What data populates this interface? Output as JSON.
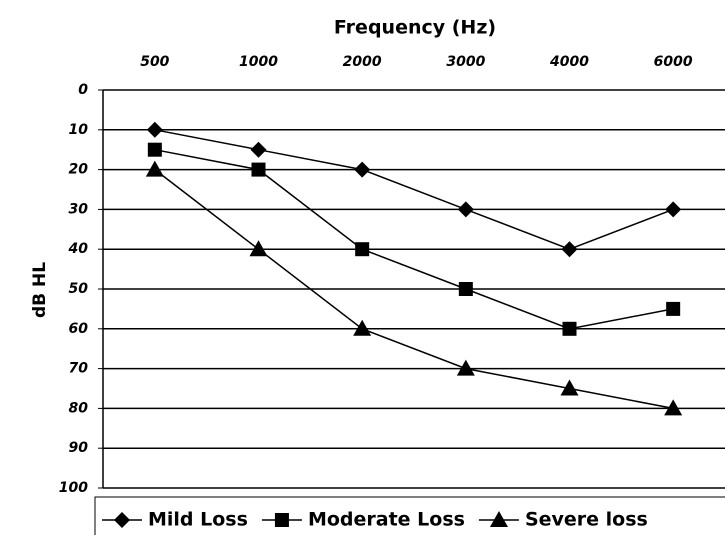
{
  "chart_data": {
    "type": "line",
    "x_label": "Frequency (Hz)",
    "y_label": "dB HL",
    "categories": [
      "500",
      "1000",
      "2000",
      "3000",
      "4000",
      "6000"
    ],
    "series": [
      {
        "name": "Mild Loss",
        "color": "#000000",
        "marker": "diamond",
        "values": [
          10,
          15,
          20,
          30,
          40,
          30
        ]
      },
      {
        "name": "Moderate Loss",
        "color": "#000000",
        "marker": "square",
        "values": [
          15,
          20,
          40,
          50,
          60,
          55
        ]
      },
      {
        "name": "Severe loss",
        "color": "#000000",
        "marker": "triangle",
        "values": [
          20,
          40,
          60,
          70,
          75,
          80
        ]
      }
    ],
    "ylim": [
      0,
      100
    ],
    "y_inverted": true,
    "yticks": [
      0,
      10,
      20,
      30,
      40,
      50,
      60,
      70,
      80,
      90,
      100
    ],
    "grid": true,
    "legend": "bottom"
  }
}
